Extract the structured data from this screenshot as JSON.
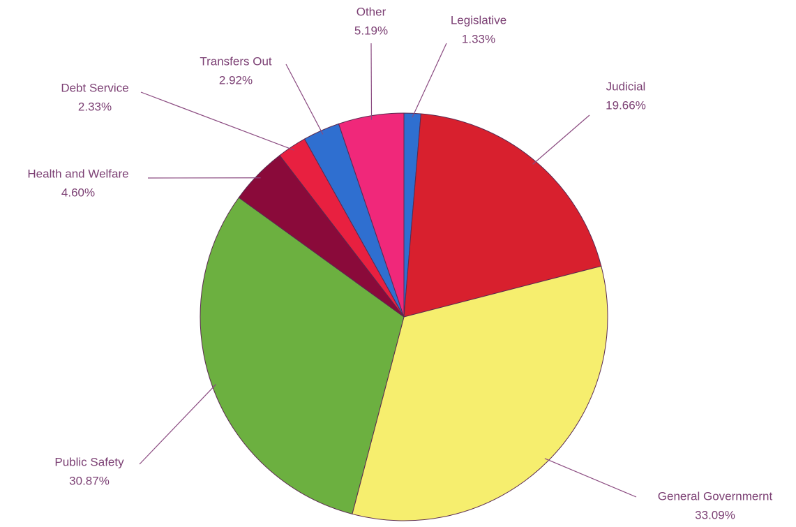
{
  "chart_data": {
    "type": "pie",
    "categories": [
      "Legislative",
      "Judicial",
      "General Governmernt",
      "Public Safety",
      "Health and Welfare",
      "Debt Service",
      "Transfers Out",
      "Other"
    ],
    "values": [
      1.33,
      19.66,
      33.09,
      30.87,
      4.6,
      2.33,
      2.92,
      5.19
    ],
    "value_labels": [
      "1.33%",
      "19.66%",
      "33.09%",
      "30.87%",
      "4.60%",
      "2.33%",
      "2.92%",
      "5.19%"
    ],
    "colors": [
      "#2f6fd0",
      "#d8202e",
      "#f6ee6e",
      "#6cb040",
      "#8a0a3a",
      "#e82040",
      "#2f6fd0",
      "#f0287a"
    ]
  }
}
